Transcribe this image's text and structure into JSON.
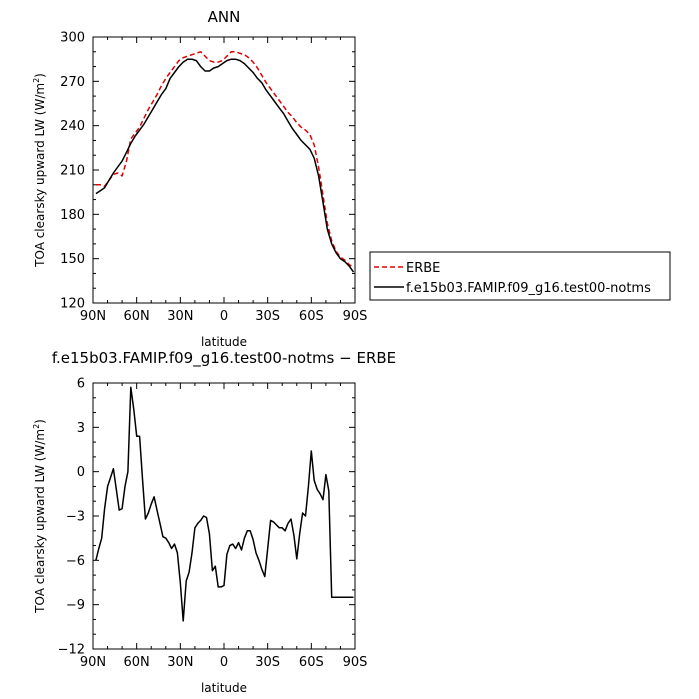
{
  "chart_data": [
    {
      "type": "line",
      "title": "ANN",
      "xlabel": "latitude",
      "ylabel": "TOA clearsky upward LW (W/m²)",
      "ylabel_parts": {
        "main": "TOA clearsky upward LW (W/m",
        "sup": "2",
        "end": ")"
      },
      "xlim": [
        90,
        -90
      ],
      "ylim": [
        120,
        300
      ],
      "x_ticks": [
        90,
        60,
        30,
        0,
        -30,
        -60,
        -90
      ],
      "x_tick_labels": [
        "90N",
        "60N",
        "30N",
        "0",
        "30S",
        "60S",
        "90S"
      ],
      "y_ticks": [
        120,
        150,
        180,
        210,
        240,
        270,
        300
      ],
      "y_tick_labels": [
        "120",
        "150",
        "180",
        "210",
        "240",
        "270",
        "300"
      ],
      "legend_position": "right",
      "series": [
        {
          "name": "ERBE",
          "color": "#e00000",
          "dash": "dashed",
          "x": [
            88,
            85,
            82,
            79,
            76,
            73,
            70,
            67,
            64,
            61,
            58,
            55,
            52,
            49,
            46,
            43,
            40,
            37,
            34,
            31,
            28,
            25,
            22,
            19,
            16,
            13,
            10,
            7,
            4,
            1,
            -2,
            -5,
            -8,
            -11,
            -14,
            -17,
            -20,
            -23,
            -26,
            -29,
            -32,
            -35,
            -38,
            -41,
            -44,
            -47,
            -50,
            -53,
            -56,
            -59,
            -62,
            -65,
            -68,
            -71,
            -74,
            -77,
            -80,
            -83,
            -86,
            -89
          ],
          "y": [
            200,
            200,
            199,
            203,
            207,
            208,
            206,
            216,
            231,
            235,
            239,
            245,
            251,
            256,
            261,
            267,
            272,
            276,
            280,
            284,
            286,
            287,
            288,
            289,
            290,
            287,
            284,
            283,
            283,
            284,
            287,
            290,
            290,
            289,
            288,
            286,
            283,
            279,
            274,
            269,
            265,
            261,
            257,
            253,
            249,
            246,
            242,
            239,
            237,
            234,
            227,
            212,
            193,
            174,
            162,
            155,
            151,
            149,
            146,
            144
          ]
        },
        {
          "name": "f.e15b03.FAMIP.f09_g16.test00-notms",
          "color": "#000000",
          "dash": "solid",
          "x": [
            88,
            85,
            82,
            79,
            76,
            73,
            70,
            67,
            64,
            61,
            58,
            55,
            52,
            49,
            46,
            43,
            40,
            37,
            34,
            31,
            28,
            25,
            22,
            19,
            16,
            13,
            10,
            7,
            4,
            1,
            -2,
            -5,
            -8,
            -11,
            -14,
            -17,
            -20,
            -23,
            -26,
            -29,
            -32,
            -35,
            -38,
            -41,
            -44,
            -47,
            -50,
            -53,
            -56,
            -59,
            -62,
            -65,
            -68,
            -71,
            -74,
            -77,
            -80,
            -83,
            -86,
            -89
          ],
          "y": [
            194,
            196,
            198,
            203,
            208,
            212,
            216,
            222,
            228,
            233,
            237,
            241,
            246,
            251,
            256,
            261,
            265,
            272,
            276,
            280,
            283,
            285,
            285,
            284,
            280,
            277,
            277,
            279,
            280,
            282,
            284,
            285,
            285,
            284,
            282,
            279,
            276,
            272,
            269,
            264,
            260,
            256,
            252,
            248,
            243,
            238,
            234,
            230,
            227,
            224,
            218,
            206,
            188,
            170,
            160,
            154,
            150,
            148,
            145,
            141
          ]
        }
      ]
    },
    {
      "type": "line",
      "title": "f.e15b03.FAMIP.f09_g16.test00-notms − ERBE",
      "xlabel": "latitude",
      "ylabel": "TOA clearsky upward LW (W/m²)",
      "ylabel_parts": {
        "main": "TOA clearsky upward LW (W/m",
        "sup": "2",
        "end": ")"
      },
      "xlim": [
        90,
        -90
      ],
      "ylim": [
        -12,
        6
      ],
      "x_ticks": [
        90,
        60,
        30,
        0,
        -30,
        -60,
        -90
      ],
      "x_tick_labels": [
        "90N",
        "60N",
        "30N",
        "0",
        "30S",
        "60S",
        "90S"
      ],
      "y_ticks": [
        -12,
        -9,
        -6,
        -3,
        0,
        3,
        6
      ],
      "y_tick_labels": [
        "−12",
        "−9",
        "−6",
        "−3",
        "0",
        "3",
        "6"
      ],
      "series": [
        {
          "color": "#000000",
          "dash": "solid",
          "x": [
            88,
            86,
            84,
            82,
            80,
            78,
            76,
            74,
            72,
            70,
            68,
            66,
            64,
            62,
            60,
            58,
            56,
            54,
            52,
            50,
            48,
            46,
            44,
            42,
            40,
            38,
            36,
            34,
            32,
            30,
            28,
            26,
            24,
            22,
            20,
            18,
            16,
            14,
            12,
            10,
            8,
            6,
            4,
            2,
            0,
            -2,
            -4,
            -6,
            -8,
            -10,
            -12,
            -14,
            -16,
            -18,
            -20,
            -22,
            -24,
            -26,
            -28,
            -30,
            -32,
            -34,
            -36,
            -38,
            -40,
            -42,
            -44,
            -46,
            -48,
            -50,
            -52,
            -54,
            -56,
            -58,
            -60,
            -62,
            -64,
            -66,
            -68,
            -70,
            -72,
            -74,
            -76,
            -78,
            -80,
            -82,
            -84,
            -86,
            -88,
            -89
          ],
          "y": [
            -6.0,
            -5.2,
            -4.5,
            -2.5,
            -1.0,
            -0.4,
            0.2,
            -1.2,
            -2.6,
            -2.5,
            -1.0,
            0.0,
            5.7,
            4.2,
            2.4,
            2.4,
            -0.5,
            -3.2,
            -2.8,
            -2.2,
            -1.7,
            -2.6,
            -3.5,
            -4.4,
            -4.5,
            -4.8,
            -5.2,
            -4.9,
            -5.5,
            -7.5,
            -10.1,
            -7.4,
            -6.8,
            -5.5,
            -3.8,
            -3.5,
            -3.3,
            -3.0,
            -3.1,
            -4.2,
            -6.7,
            -6.4,
            -7.8,
            -7.8,
            -7.7,
            -5.6,
            -5.0,
            -4.9,
            -5.2,
            -4.8,
            -5.3,
            -4.5,
            -4.0,
            -4.0,
            -4.6,
            -5.5,
            -6.0,
            -6.6,
            -7.1,
            -5.2,
            -3.3,
            -3.4,
            -3.6,
            -3.8,
            -3.8,
            -4.0,
            -3.5,
            -3.2,
            -4.3,
            -5.9,
            -4.2,
            -2.8,
            -3.0,
            -1.0,
            1.4,
            -0.6,
            -1.2,
            -1.5,
            -1.9,
            -0.2,
            -1.3,
            -8.5,
            -8.5,
            -8.5,
            -8.5,
            -8.5,
            -8.5,
            -8.5,
            -8.5,
            -8.5
          ]
        }
      ]
    }
  ]
}
